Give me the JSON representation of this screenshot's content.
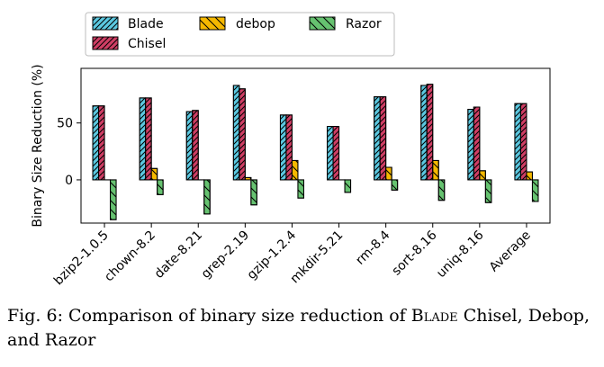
{
  "chart_data": {
    "type": "bar",
    "ylabel": "Binary Size Reduction (%)",
    "ylim": [
      -38,
      98
    ],
    "yticks": [
      0,
      50
    ],
    "categories": [
      "bzip2-1.0.5",
      "chown-8.2",
      "date-8.21",
      "grep-2.19",
      "gzip-1.2.4",
      "mkdir-5.21",
      "rm-8.4",
      "sort-8.16",
      "uniq-8.16",
      "Average"
    ],
    "series": [
      {
        "name": "Blade",
        "color": "#5bc8e0",
        "hatch": "diagonal",
        "values": [
          65,
          72,
          60,
          83,
          57,
          47,
          73,
          83,
          62,
          67
        ]
      },
      {
        "name": "Chisel",
        "color": "#cf3e64",
        "hatch": "diagonal",
        "values": [
          65,
          72,
          61,
          80,
          57,
          47,
          73,
          84,
          64,
          67
        ]
      },
      {
        "name": "debop",
        "color": "#f5b800",
        "hatch": "back-diagonal",
        "values": [
          0,
          10,
          0,
          2,
          17,
          0,
          11,
          17,
          8,
          7
        ]
      },
      {
        "name": "Razor",
        "color": "#66c270",
        "hatch": "back-diagonal",
        "values": [
          -35,
          -13,
          -30,
          -22,
          -16,
          -11,
          -9,
          -18,
          -20,
          -19
        ]
      }
    ],
    "legend": "top-left, outside plot, 3 columns",
    "grid": false
  },
  "caption": {
    "prefix": "Fig. 6: Comparison of binary size reduction of ",
    "name": "Blade",
    "suffix": " Chisel, Debop, and Razor"
  }
}
